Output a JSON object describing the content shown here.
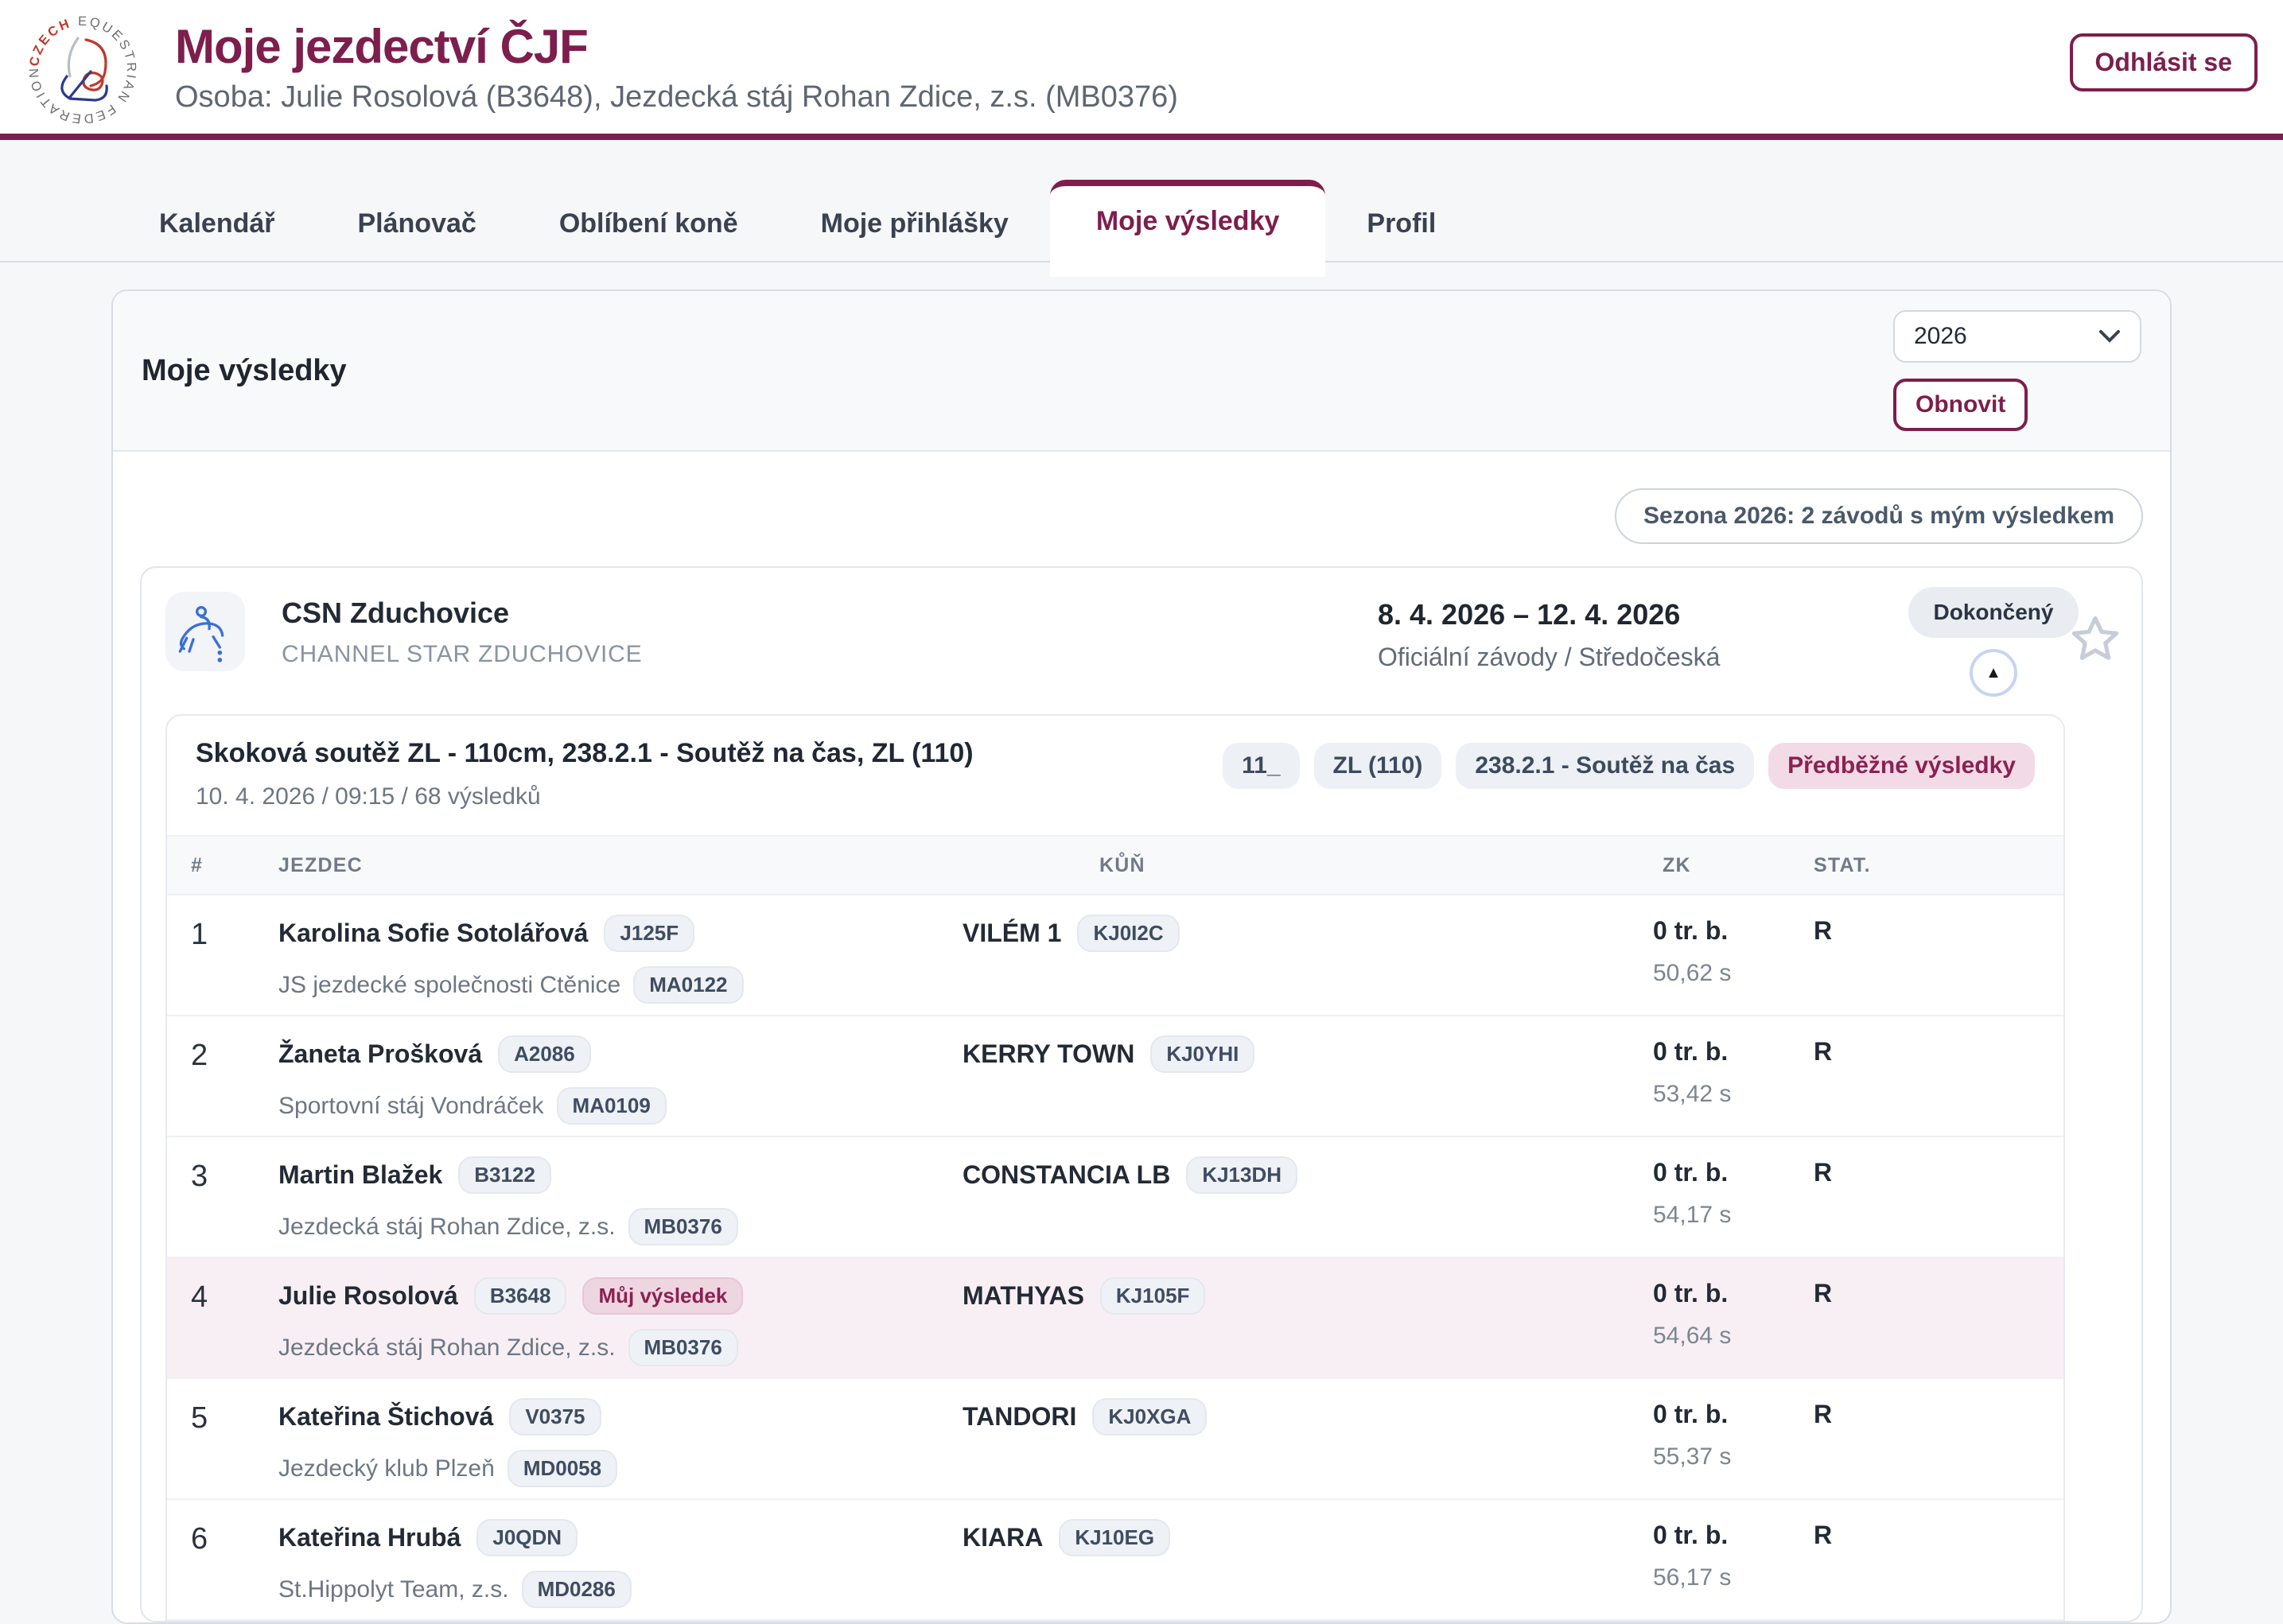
{
  "header": {
    "title": "Moje jezdectví ČJF",
    "subtitle": "Osoba: Julie Rosolová (B3648), Jezdecká stáj Rohan Zdice, z.s. (MB0376)",
    "logout_label": "Odhlásit se",
    "logo_text": "CZECH EQUESTRIAN FEDERATION"
  },
  "tabs": [
    {
      "label": "Kalendář",
      "active": false
    },
    {
      "label": "Plánovač",
      "active": false
    },
    {
      "label": "Oblíbení koně",
      "active": false
    },
    {
      "label": "Moje přihlášky",
      "active": false
    },
    {
      "label": "Moje výsledky",
      "active": true
    },
    {
      "label": "Profil",
      "active": false
    }
  ],
  "panel": {
    "title": "Moje výsledky",
    "year_selected": "2026",
    "refresh_label": "Obnovit",
    "season_summary": "Sezona 2026: 2 závodů s mým výsledkem"
  },
  "event": {
    "name": "CSN Zduchovice",
    "subtitle": "CHANNEL STAR ZDUCHOVICE",
    "date_range": "8. 4. 2026 – 12. 4. 2026",
    "category": "Oficiální závody / Středočeská",
    "status": "Dokončený"
  },
  "competition": {
    "title": "Skoková soutěž ZL - 110cm, 238.2.1 - Soutěž na čas, ZL (110)",
    "meta": "10. 4. 2026 / 09:15 / 68 výsledků",
    "badges": [
      "11_",
      "ZL (110)",
      "238.2.1 - Soutěž na čas"
    ],
    "status_badge": "Předběžné výsledky"
  },
  "table": {
    "headers": {
      "rank": "#",
      "rider": "JEZDEC",
      "horse": "KŮŇ",
      "zk": "ZK",
      "stat": "STAT."
    },
    "rows": [
      {
        "rank": "1",
        "rider": "Karolina Sofie Sotolářová",
        "rider_license": "J125F",
        "club": "JS jezdecké společnosti Ctěnice",
        "club_code": "MA0122",
        "horse": "VILÉM 1",
        "horse_license": "KJ0I2C",
        "zk": "0 tr. b.",
        "time": "50,62 s",
        "stat": "R",
        "highlight": false
      },
      {
        "rank": "2",
        "rider": "Žaneta Prošková",
        "rider_license": "A2086",
        "club": "Sportovní stáj Vondráček",
        "club_code": "MA0109",
        "horse": "KERRY TOWN",
        "horse_license": "KJ0YHI",
        "zk": "0 tr. b.",
        "time": "53,42 s",
        "stat": "R",
        "highlight": false
      },
      {
        "rank": "3",
        "rider": "Martin Blažek",
        "rider_license": "B3122",
        "club": "Jezdecká stáj Rohan Zdice, z.s.",
        "club_code": "MB0376",
        "horse": "CONSTANCIA LB",
        "horse_license": "KJ13DH",
        "zk": "0 tr. b.",
        "time": "54,17 s",
        "stat": "R",
        "highlight": false
      },
      {
        "rank": "4",
        "rider": "Julie Rosolová",
        "rider_license": "B3648",
        "my_result_label": "Můj výsledek",
        "club": "Jezdecká stáj Rohan Zdice, z.s.",
        "club_code": "MB0376",
        "horse": "MATHYAS",
        "horse_license": "KJ105F",
        "zk": "0 tr. b.",
        "time": "54,64 s",
        "stat": "R",
        "highlight": true
      },
      {
        "rank": "5",
        "rider": "Kateřina Štichová",
        "rider_license": "V0375",
        "club": "Jezdecký klub Plzeň",
        "club_code": "MD0058",
        "horse": "TANDORI",
        "horse_license": "KJ0XGA",
        "zk": "0 tr. b.",
        "time": "55,37 s",
        "stat": "R",
        "highlight": false
      },
      {
        "rank": "6",
        "rider": "Kateřina Hrubá",
        "rider_license": "J0QDN",
        "club": "St.Hippolyt Team, z.s.",
        "club_code": "MD0286",
        "horse": "KIARA",
        "horse_license": "KJ10EG",
        "zk": "0 tr. b.",
        "time": "56,17 s",
        "stat": "R",
        "highlight": false
      }
    ]
  },
  "colors": {
    "primary": "#7d1e4c",
    "highlight_row": "#f8eff4",
    "badge_pink_bg": "#f2dbe6",
    "page_bg": "#f5f7f9"
  }
}
